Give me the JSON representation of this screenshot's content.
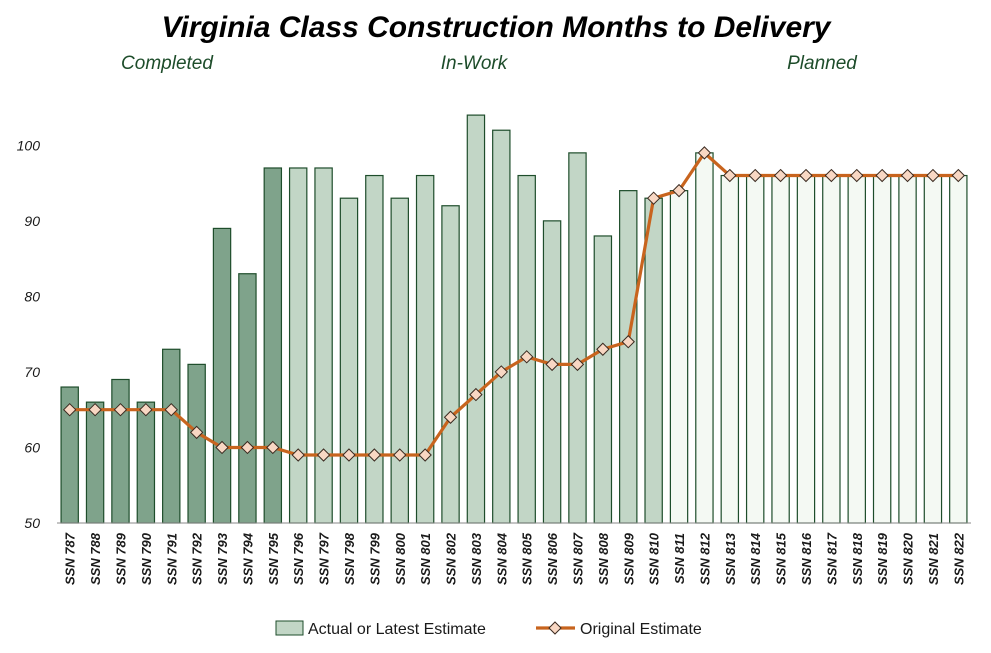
{
  "chart_data": {
    "type": "bar",
    "title": "Virginia Class Construction Months to Delivery",
    "phases": [
      {
        "label": "Completed",
        "color": "#1e4d2b"
      },
      {
        "label": "In-Work",
        "color": "#1e4d2b"
      },
      {
        "label": "Planned",
        "color": "#1e4d2b"
      }
    ],
    "categories": [
      "SSN 787",
      "SSN 788",
      "SSN 789",
      "SSN 790",
      "SSN 791",
      "SSN 792",
      "SSN 793",
      "SSN 794",
      "SSN 795",
      "SSN 796",
      "SSN 797",
      "SSN 798",
      "SSN 799",
      "SSN 800",
      "SSN 801",
      "SSN 802",
      "SSN 803",
      "SSN 804",
      "SSN 805",
      "SSN 806",
      "SSN 807",
      "SSN 808",
      "SSN 809",
      "SSN 810",
      "SSN 811",
      "SSN 812",
      "SSN 813",
      "SSN 814",
      "SSN 815",
      "SSN 816",
      "SSN 817",
      "SSN 818",
      "SSN 819",
      "SSN 820",
      "SSN 821",
      "SSN 822"
    ],
    "category_status": [
      "completed",
      "completed",
      "completed",
      "completed",
      "completed",
      "completed",
      "completed",
      "completed",
      "completed",
      "in-work",
      "in-work",
      "in-work",
      "in-work",
      "in-work",
      "in-work",
      "in-work",
      "in-work",
      "in-work",
      "in-work",
      "in-work",
      "in-work",
      "in-work",
      "in-work",
      "in-work",
      "planned",
      "planned",
      "planned",
      "planned",
      "planned",
      "planned",
      "planned",
      "planned",
      "planned",
      "planned",
      "planned",
      "planned"
    ],
    "series": [
      {
        "name": "Actual or Latest Estimate",
        "type": "bar",
        "values": [
          68,
          66,
          69,
          66,
          73,
          71,
          89,
          83,
          97,
          97,
          97,
          93,
          96,
          93,
          96,
          92,
          104,
          102,
          96,
          90,
          99,
          88,
          94,
          93,
          94,
          99,
          96,
          96,
          96,
          96,
          96,
          96,
          96,
          96,
          96,
          96
        ]
      },
      {
        "name": "Original Estimate",
        "type": "line",
        "values": [
          65,
          65,
          65,
          65,
          65,
          62,
          60,
          60,
          60,
          59,
          59,
          59,
          59,
          59,
          59,
          64,
          67,
          70,
          72,
          71,
          71,
          73,
          74,
          93,
          94,
          99,
          96,
          96,
          96,
          96,
          96,
          96,
          96,
          96,
          96,
          96
        ]
      }
    ],
    "yticks": [
      50,
      60,
      70,
      80,
      90,
      100
    ],
    "ylim": [
      50,
      106
    ],
    "colors": {
      "completed_fill": "#7fa38b",
      "inwork_fill": "#c2d6c6",
      "planned_fill": "#f4f9f3",
      "bar_stroke": "#1e4d2b",
      "line": "#c8641e",
      "marker_fill": "#f8d7c3",
      "marker_stroke": "#3a2a20"
    },
    "legend_position": "bottom"
  }
}
